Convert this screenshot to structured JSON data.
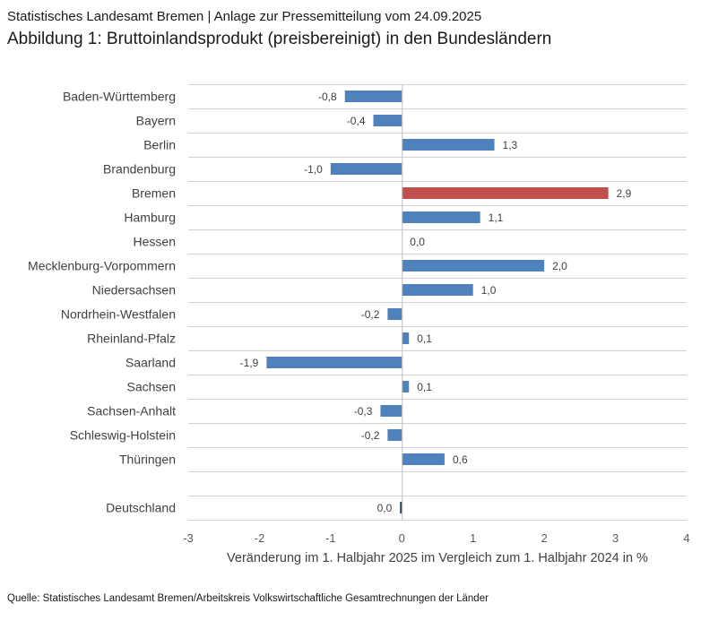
{
  "header": {
    "line1": "Statistisches Landesamt Bremen | Anlage zur Pressemitteilung vom 24.09.2025",
    "line2": "Abbildung 1: Bruttoinlandsprodukt (preisbereinigt) in den Bundesländern"
  },
  "source": "Quelle: Statistisches Landesamt Bremen/Arbeitskreis Volkswirtschaftliche Gesamtrechnungen der Länder",
  "colors": {
    "default_bar": "#4f81bd",
    "highlight_bar": "#c0504d",
    "total_bar": "#1f3864",
    "grid": "#d0d0d0",
    "zero_line": "#bfbfbf"
  },
  "chart_data": {
    "type": "bar",
    "orientation": "horizontal",
    "title": "Abbildung 1: Bruttoinlandsprodukt (preisbereinigt) in den Bundesländern",
    "xlabel": "Veränderung im 1. Halbjahr 2025 im Vergleich zum 1. Halbjahr 2024 in %",
    "ylabel": "",
    "xlim": [
      -3,
      4
    ],
    "xticks": [
      "-3",
      "-2",
      "-1",
      "0",
      "1",
      "2",
      "3",
      "4"
    ],
    "grid": "horizontal row separators",
    "categories": [
      "Baden-Württemberg",
      "Bayern",
      "Berlin",
      "Brandenburg",
      "Bremen",
      "Hamburg",
      "Hessen",
      "Mecklenburg-Vorpommern",
      "Niedersachsen",
      "Nordrhein-Westfalen",
      "Rheinland-Pfalz",
      "Saarland",
      "Sachsen",
      "Sachsen-Anhalt",
      "Schleswig-Holstein",
      "Thüringen",
      "",
      "Deutschland"
    ],
    "values": [
      -0.8,
      -0.4,
      1.3,
      -1.0,
      2.9,
      1.1,
      0.0,
      2.0,
      1.0,
      -0.2,
      0.1,
      -1.9,
      0.1,
      -0.3,
      -0.2,
      0.6,
      null,
      -0.02
    ],
    "labels": [
      "-0,8",
      "-0,4",
      "1,3",
      "-1,0",
      "2,9",
      "1,1",
      "0,0",
      "2,0",
      "1,0",
      "-0,2",
      "0,1",
      "-1,9",
      "0,1",
      "-0,3",
      "-0,2",
      "0,6",
      "",
      "0,0"
    ],
    "highlight": "Bremen",
    "total": "Deutschland"
  }
}
